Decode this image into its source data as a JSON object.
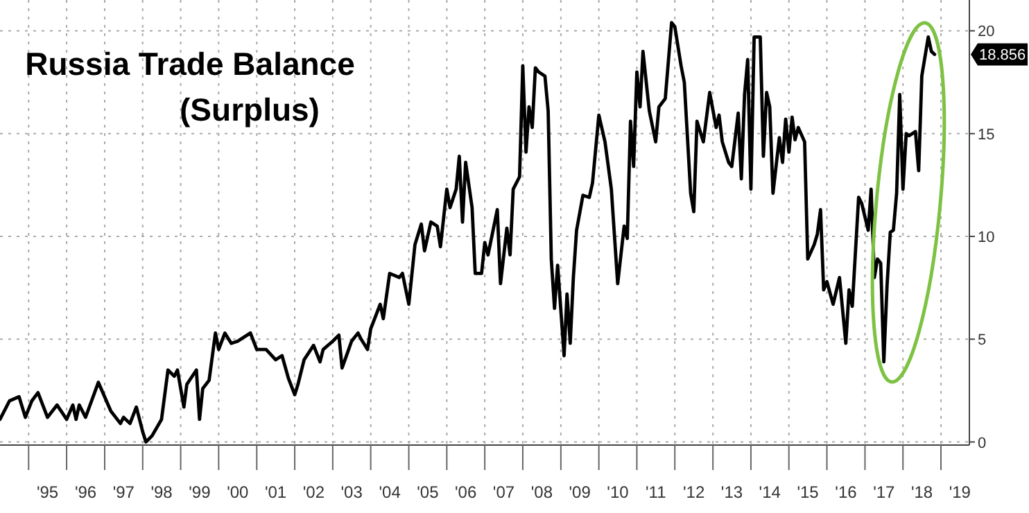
{
  "chart_data": {
    "type": "line",
    "title": "Russia Trade Balance",
    "subtitle": "(Surplus)",
    "x": [
      "1994-04",
      "1994-07",
      "1994-10",
      "1994-12",
      "1995-02",
      "1995-04",
      "1995-07",
      "1995-10",
      "1996-01",
      "1996-03",
      "1996-04",
      "1996-05",
      "1996-07",
      "1996-11",
      "1997-03",
      "1997-06",
      "1997-07",
      "1997-09",
      "1997-11",
      "1998-01",
      "1998-02",
      "1998-04",
      "1998-07",
      "1998-09",
      "1998-11",
      "1998-12",
      "1999-02",
      "1999-03",
      "1999-06",
      "1999-07",
      "1999-08",
      "1999-10",
      "1999-12",
      "2000-01",
      "2000-03",
      "2000-05",
      "2000-07",
      "2000-11",
      "2001-01",
      "2001-04",
      "2001-07",
      "2001-09",
      "2001-11",
      "2002-01",
      "2002-02",
      "2002-04",
      "2002-07",
      "2002-09",
      "2002-10",
      "2003-01",
      "2003-03",
      "2003-04",
      "2003-07",
      "2003-09",
      "2003-10",
      "2003-12",
      "2004-01",
      "2004-04",
      "2004-05",
      "2004-07",
      "2004-10",
      "2004-11",
      "2005-01",
      "2005-03",
      "2005-05",
      "2005-06",
      "2005-08",
      "2005-10",
      "2005-11",
      "2006-01",
      "2006-02",
      "2006-04",
      "2006-05",
      "2006-06",
      "2006-07",
      "2006-09",
      "2006-10",
      "2006-12",
      "2007-01",
      "2007-02",
      "2007-05",
      "2007-06",
      "2007-08",
      "2007-09",
      "2007-10",
      "2007-12",
      "2008-01",
      "2008-02",
      "2008-03",
      "2008-04",
      "2008-05",
      "2008-06",
      "2008-08",
      "2008-09",
      "2008-10",
      "2008-11",
      "2008-12",
      "2009-02",
      "2009-03",
      "2009-04",
      "2009-05",
      "2009-06",
      "2009-08",
      "2009-10",
      "2009-11",
      "2010-01",
      "2010-03",
      "2010-05",
      "2010-07",
      "2010-09",
      "2010-10",
      "2010-11",
      "2010-12",
      "2011-01",
      "2011-02",
      "2011-03",
      "2011-05",
      "2011-07",
      "2011-08",
      "2011-10",
      "2011-12",
      "2012-01",
      "2012-03",
      "2012-04",
      "2012-06",
      "2012-07",
      "2012-08",
      "2012-10",
      "2012-12",
      "2013-02",
      "2013-03",
      "2013-04",
      "2013-06",
      "2013-07",
      "2013-09",
      "2013-10",
      "2013-11",
      "2013-12",
      "2014-01",
      "2014-02",
      "2014-04",
      "2014-05",
      "2014-06",
      "2014-07",
      "2014-08",
      "2014-10",
      "2014-11",
      "2014-12",
      "2015-01",
      "2015-02",
      "2015-03",
      "2015-04",
      "2015-06",
      "2015-07",
      "2015-09",
      "2015-10",
      "2015-11",
      "2015-12",
      "2016-01",
      "2016-03",
      "2016-05",
      "2016-07",
      "2016-08",
      "2016-09",
      "2016-11",
      "2016-12",
      "2017-02",
      "2017-03",
      "2017-04",
      "2017-05",
      "2017-06",
      "2017-07",
      "2017-08",
      "2017-09",
      "2017-10",
      "2017-11",
      "2017-12",
      "2018-01",
      "2018-02",
      "2018-03",
      "2018-05",
      "2018-06",
      "2018-07",
      "2018-09",
      "2018-10",
      "2018-11"
    ],
    "series": [
      {
        "color": "#000000",
        "values": [
          1.1,
          2.0,
          2.2,
          1.2,
          2.0,
          2.4,
          1.2,
          1.8,
          1.1,
          1.8,
          1.1,
          1.8,
          1.2,
          2.9,
          1.5,
          0.9,
          1.2,
          0.9,
          1.7,
          0.5,
          0,
          0.3,
          1.1,
          3.5,
          3.2,
          3.5,
          1.7,
          2.8,
          3.5,
          1.1,
          2.6,
          3.0,
          5.3,
          4.5,
          5.3,
          4.8,
          4.9,
          5.3,
          4.5,
          4.5,
          4.0,
          4.2,
          3.1,
          2.3,
          2.8,
          4.0,
          4.7,
          3.9,
          4.5,
          4.9,
          5.2,
          3.6,
          4.9,
          5.3,
          5.0,
          4.5,
          5.5,
          6.7,
          6.0,
          8.2,
          8.0,
          8.2,
          6.7,
          9.6,
          10.6,
          9.3,
          10.7,
          10.5,
          9.5,
          12.3,
          11.4,
          12.3,
          13.9,
          10.7,
          13.6,
          11.4,
          8.2,
          8.2,
          9.7,
          9.1,
          11.3,
          7.7,
          10.4,
          9.1,
          12.3,
          12.9,
          18.3,
          14.1,
          16.3,
          15.3,
          18.2,
          18.0,
          17.8,
          16.1,
          8.9,
          6.5,
          8.6,
          4.2,
          7.2,
          4.8,
          8.0,
          10.3,
          12.0,
          11.9,
          12.6,
          15.9,
          14.6,
          12.3,
          7.7,
          10.5,
          9.9,
          15.6,
          13.4,
          18.0,
          16.3,
          19.0,
          16.1,
          14.6,
          16.3,
          16.7,
          20.4,
          20.2,
          18.3,
          17.5,
          12.1,
          11.2,
          15.6,
          14.6,
          17.0,
          15.3,
          15.9,
          14.6,
          13.6,
          13.4,
          16.0,
          12.8,
          16.9,
          18.6,
          12.3,
          19.7,
          19.7,
          13.9,
          17.0,
          16.3,
          12.1,
          14.8,
          13.6,
          15.7,
          14.1,
          15.8,
          14.7,
          15.3,
          14.6,
          8.9,
          9.6,
          10.1,
          11.3,
          7.4,
          7.8,
          6.7,
          8.0,
          4.8,
          7.4,
          6.6,
          11.9,
          11.6,
          10.3,
          12.3,
          8.0,
          8.9,
          8.7,
          3.9,
          7.6,
          10.2,
          10.3,
          12.1,
          16.9,
          12.3,
          15.0,
          14.9,
          15.1,
          13.2,
          17.8,
          19.7,
          19.0,
          18.856
        ]
      }
    ],
    "xlim": [
      "1994-04-01",
      "2019-10-01"
    ],
    "xticks": [
      {
        "value": "1995-01-01",
        "label": null
      },
      {
        "value": "1995-07-02",
        "label": "'95"
      },
      {
        "value": "1996-01-01",
        "label": null
      },
      {
        "value": "1996-07-02",
        "label": "'96"
      },
      {
        "value": "1997-01-01",
        "label": null
      },
      {
        "value": "1997-07-02",
        "label": "'97"
      },
      {
        "value": "1998-01-01",
        "label": null
      },
      {
        "value": "1998-07-02",
        "label": "'98"
      },
      {
        "value": "1999-01-01",
        "label": null
      },
      {
        "value": "1999-07-02",
        "label": "'99"
      },
      {
        "value": "2000-01-01",
        "label": null
      },
      {
        "value": "2000-07-02",
        "label": "'00"
      },
      {
        "value": "2001-01-01",
        "label": null
      },
      {
        "value": "2001-07-02",
        "label": "'01"
      },
      {
        "value": "2002-01-01",
        "label": null
      },
      {
        "value": "2002-07-02",
        "label": "'02"
      },
      {
        "value": "2003-01-01",
        "label": null
      },
      {
        "value": "2003-07-02",
        "label": "'03"
      },
      {
        "value": "2004-01-01",
        "label": null
      },
      {
        "value": "2004-07-02",
        "label": "'04"
      },
      {
        "value": "2005-01-01",
        "label": null
      },
      {
        "value": "2005-07-02",
        "label": "'05"
      },
      {
        "value": "2006-01-01",
        "label": null
      },
      {
        "value": "2006-07-02",
        "label": "'06"
      },
      {
        "value": "2007-01-01",
        "label": null
      },
      {
        "value": "2007-07-02",
        "label": "'07"
      },
      {
        "value": "2008-01-01",
        "label": null
      },
      {
        "value": "2008-07-02",
        "label": "'08"
      },
      {
        "value": "2009-01-01",
        "label": null
      },
      {
        "value": "2009-07-02",
        "label": "'09"
      },
      {
        "value": "2010-01-01",
        "label": null
      },
      {
        "value": "2010-07-02",
        "label": "'10"
      },
      {
        "value": "2011-01-01",
        "label": null
      },
      {
        "value": "2011-07-02",
        "label": "'11"
      },
      {
        "value": "2012-01-01",
        "label": null
      },
      {
        "value": "2012-07-02",
        "label": "'12"
      },
      {
        "value": "2013-01-01",
        "label": null
      },
      {
        "value": "2013-07-02",
        "label": "'13"
      },
      {
        "value": "2014-01-01",
        "label": null
      },
      {
        "value": "2014-07-02",
        "label": "'14"
      },
      {
        "value": "2015-01-01",
        "label": null
      },
      {
        "value": "2015-07-02",
        "label": "'15"
      },
      {
        "value": "2016-01-01",
        "label": null
      },
      {
        "value": "2016-07-02",
        "label": "'16"
      },
      {
        "value": "2017-01-01",
        "label": null
      },
      {
        "value": "2017-07-02",
        "label": "'17"
      },
      {
        "value": "2018-01-01",
        "label": null
      },
      {
        "value": "2018-07-02",
        "label": "'18"
      },
      {
        "value": "2019-01-01",
        "label": null
      },
      {
        "value": "2019-07-02",
        "label": "'19"
      }
    ],
    "ylim": [
      -0.15,
      21.5
    ],
    "yticks": [
      0,
      5,
      10,
      15,
      20
    ],
    "annotations": [
      "18.856"
    ],
    "grid": true,
    "line_style": "solid",
    "marker": "none"
  }
}
